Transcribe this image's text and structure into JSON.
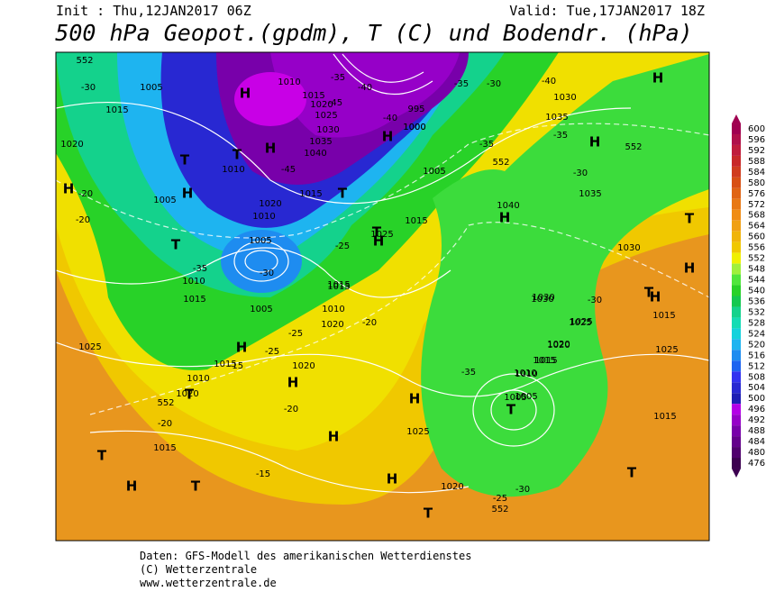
{
  "header": {
    "init": "Init : Thu,12JAN2017 06Z",
    "valid": "Valid: Tue,17JAN2017 18Z",
    "title": "500 hPa Geopot.(gpdm), T (C) und Bodendr. (hPa)"
  },
  "map": {
    "pressure_centers": [
      "H",
      "H",
      "H",
      "H",
      "H",
      "H",
      "H",
      "H",
      "H",
      "H",
      "H",
      "H",
      "H",
      "H",
      "H",
      "H",
      "H",
      "T",
      "T",
      "T",
      "T",
      "T",
      "T",
      "T",
      "T",
      "T",
      "T",
      "T",
      "T",
      "T"
    ],
    "isobar_labels": [
      "1010",
      "1015",
      "1020",
      "1025",
      "1030",
      "1035",
      "1040",
      "1000",
      "995",
      "1005",
      "1010",
      "1015",
      "1020",
      "1005",
      "1010",
      "1015",
      "1005",
      "1020",
      "1025",
      "1015",
      "1010",
      "1015",
      "1020",
      "1025",
      "1020",
      "1025",
      "1015",
      "1005",
      "1010",
      "1015",
      "1020",
      "1030",
      "1035",
      "1030",
      "1035",
      "1030",
      "1040",
      "1025",
      "1020",
      "1015",
      "1010",
      "1005",
      "1015",
      "1025",
      "1015",
      "1020",
      "1005",
      "1000",
      "1010",
      "1015",
      "1025",
      "1020",
      "1030",
      "1005",
      "1015",
      "1010",
      "1015"
    ],
    "temperature_labels": [
      "-30",
      "-35",
      "-40",
      "-45",
      "-45",
      "-40",
      "-35",
      "-30",
      "-25",
      "-20",
      "-20",
      "-25",
      "-20",
      "-15",
      "-15",
      "-20",
      "-25",
      "-30",
      "-35",
      "-30",
      "-35",
      "-40",
      "-35",
      "-30",
      "-25",
      "-20",
      "-35",
      "-30"
    ],
    "height_labels": [
      "552",
      "552",
      "552",
      "552",
      "552"
    ]
  },
  "legend": {
    "values": [
      600,
      596,
      592,
      588,
      584,
      580,
      576,
      572,
      568,
      564,
      560,
      556,
      552,
      548,
      544,
      540,
      536,
      532,
      528,
      524,
      520,
      516,
      512,
      508,
      504,
      500,
      496,
      492,
      488,
      484,
      480,
      476
    ],
    "colors": [
      "#a00050",
      "#b0104a",
      "#c01c3c",
      "#c82828",
      "#d03c1e",
      "#d85014",
      "#e06414",
      "#e87814",
      "#f08c14",
      "#f0a014",
      "#f0b40a",
      "#f0c800",
      "#f0f000",
      "#a0f03c",
      "#50e63c",
      "#28d228",
      "#14c850",
      "#14d28c",
      "#14dcb4",
      "#14d2dc",
      "#1eb4f0",
      "#1e8cf0",
      "#1e64f0",
      "#3232f0",
      "#2828d2",
      "#1e1eb4",
      "#b400e6",
      "#9600c8",
      "#7800aa",
      "#64008c",
      "#50006e",
      "#3c0050"
    ]
  },
  "footer": {
    "source": "Daten: GFS-Modell des amerikanischen Wetterdienstes",
    "copyright": "(C) Wetterzentrale",
    "url": "www.wetterzentrale.de"
  }
}
